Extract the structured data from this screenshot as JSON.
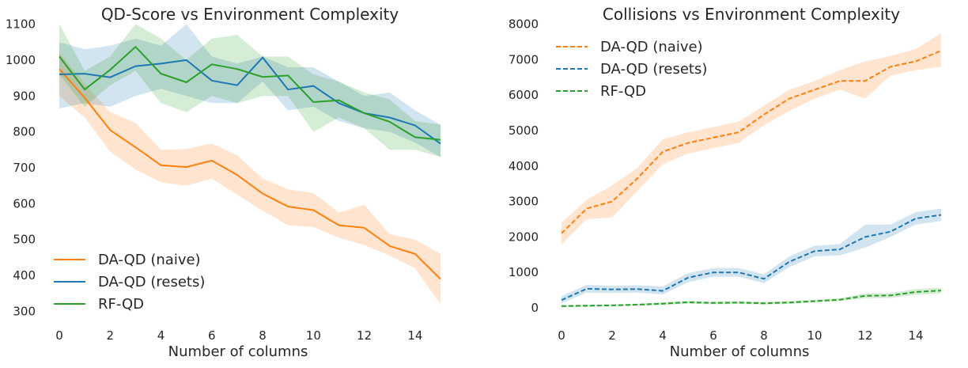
{
  "chart_data": [
    {
      "type": "line",
      "title": "QD-Score vs Environment Complexity",
      "xlabel": "Number of columns",
      "ylabel": "",
      "xlim": [
        -0.3,
        15
      ],
      "ylim": [
        290,
        1110
      ],
      "xticks": [
        0,
        2,
        4,
        6,
        8,
        10,
        12,
        14
      ],
      "yticks": [
        300,
        400,
        500,
        600,
        700,
        800,
        900,
        1000,
        1100
      ],
      "legend_position": "lower-left",
      "x": [
        0,
        1,
        2,
        3,
        4,
        5,
        6,
        7,
        8,
        9,
        10,
        11,
        12,
        13,
        14,
        15
      ],
      "series": [
        {
          "name": "DA-QD (naive)",
          "color": "#ff7f0e",
          "style": "solid",
          "values": [
            975,
            895,
            805,
            757,
            707,
            702,
            720,
            680,
            628,
            592,
            582,
            540,
            533,
            482,
            460,
            390
          ],
          "lower": [
            900,
            840,
            745,
            695,
            660,
            650,
            670,
            625,
            580,
            540,
            535,
            505,
            485,
            455,
            420,
            320
          ],
          "upper": [
            1020,
            935,
            855,
            825,
            750,
            753,
            768,
            735,
            670,
            640,
            630,
            575,
            597,
            515,
            500,
            460
          ]
        },
        {
          "name": "DA-QD (resets)",
          "color": "#1f77b4",
          "style": "solid",
          "values": [
            960,
            962,
            952,
            983,
            990,
            1000,
            943,
            930,
            1007,
            918,
            928,
            880,
            852,
            840,
            818,
            767
          ],
          "lower": [
            865,
            880,
            870,
            900,
            920,
            900,
            880,
            880,
            940,
            860,
            870,
            830,
            810,
            800,
            770,
            730
          ],
          "upper": [
            1050,
            1030,
            1040,
            1060,
            1040,
            1100,
            1010,
            990,
            1010,
            980,
            980,
            940,
            900,
            910,
            860,
            820
          ]
        },
        {
          "name": "RF-QD",
          "color": "#2ca02c",
          "style": "solid",
          "values": [
            1010,
            918,
            973,
            1037,
            962,
            938,
            988,
            975,
            953,
            957,
            883,
            888,
            852,
            828,
            785,
            778
          ],
          "lower": [
            960,
            870,
            930,
            970,
            880,
            855,
            900,
            880,
            900,
            900,
            800,
            840,
            810,
            750,
            750,
            730
          ],
          "upper": [
            1100,
            970,
            1010,
            1100,
            1060,
            1000,
            1060,
            1070,
            1010,
            1010,
            960,
            940,
            910,
            890,
            830,
            820
          ]
        }
      ]
    },
    {
      "type": "line",
      "title": "Collisions vs Environment Complexity",
      "xlabel": "Number of columns",
      "ylabel": "",
      "xlim": [
        -0.3,
        15
      ],
      "ylim": [
        -200,
        8100
      ],
      "xticks": [
        0,
        2,
        4,
        6,
        8,
        10,
        12,
        14
      ],
      "yticks": [
        0,
        1000,
        2000,
        3000,
        4000,
        5000,
        6000,
        7000,
        8000
      ],
      "legend_position": "top-left",
      "x": [
        0,
        1,
        2,
        3,
        4,
        5,
        6,
        7,
        8,
        9,
        10,
        11,
        12,
        13,
        14,
        15
      ],
      "series": [
        {
          "name": "DA-QD (naive)",
          "color": "#ff7f0e",
          "style": "dashed",
          "values": [
            2100,
            2800,
            3000,
            3650,
            4400,
            4650,
            4800,
            4950,
            5450,
            5900,
            6150,
            6400,
            6400,
            6800,
            6950,
            7250
          ],
          "lower": [
            1800,
            2500,
            2550,
            3300,
            4050,
            4350,
            4500,
            4650,
            5150,
            5550,
            5900,
            6150,
            5900,
            6550,
            6700,
            6800
          ],
          "upper": [
            2400,
            3050,
            3450,
            3950,
            4750,
            4950,
            5100,
            5250,
            5700,
            6150,
            6400,
            6700,
            6950,
            7100,
            7300,
            7750
          ]
        },
        {
          "name": "DA-QD (resets)",
          "color": "#1f77b4",
          "style": "dashed",
          "values": [
            220,
            540,
            520,
            530,
            480,
            850,
            1000,
            1000,
            820,
            1300,
            1600,
            1650,
            2000,
            2150,
            2520,
            2620
          ],
          "lower": [
            130,
            430,
            420,
            430,
            380,
            720,
            880,
            880,
            700,
            1150,
            1450,
            1480,
            1700,
            2000,
            2350,
            2450
          ],
          "upper": [
            330,
            650,
            620,
            640,
            600,
            980,
            1120,
            1120,
            950,
            1450,
            1750,
            1800,
            2350,
            2350,
            2700,
            2800
          ]
        },
        {
          "name": "RF-QD",
          "color": "#2ca02c",
          "style": "dashed",
          "values": [
            50,
            60,
            70,
            90,
            120,
            160,
            140,
            150,
            130,
            150,
            190,
            230,
            340,
            350,
            450,
            490
          ],
          "lower": [
            20,
            30,
            40,
            60,
            80,
            120,
            100,
            110,
            90,
            110,
            150,
            190,
            270,
            280,
            370,
            410
          ],
          "upper": [
            80,
            90,
            100,
            120,
            160,
            200,
            180,
            190,
            170,
            190,
            230,
            270,
            410,
            420,
            530,
            570
          ]
        }
      ]
    }
  ]
}
